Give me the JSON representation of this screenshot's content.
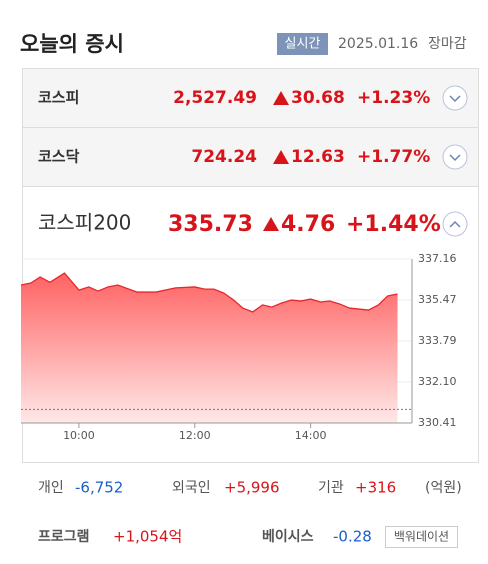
{
  "header": {
    "title": "오늘의 증시",
    "badge": "실시간",
    "date": "2025.01.16",
    "status": "장마감"
  },
  "indices": [
    {
      "name": "코스피",
      "price": "2,527.49",
      "change": "30.68",
      "rate": "+1.23%"
    },
    {
      "name": "코스닥",
      "price": "724.24",
      "change": "12.63",
      "rate": "+1.77%"
    },
    {
      "name": "코스피200",
      "price": "335.73",
      "change": "4.76",
      "rate": "+1.44%"
    }
  ],
  "chart_data": {
    "type": "area",
    "color": "#e8262c",
    "x": [
      9,
      9.17,
      9.33,
      9.5,
      9.75,
      10,
      10.17,
      10.33,
      10.5,
      10.67,
      11,
      11.33,
      11.67,
      12,
      12.17,
      12.33,
      12.5,
      12.67,
      12.83,
      13,
      13.17,
      13.33,
      13.5,
      13.67,
      13.83,
      14,
      14.17,
      14.33,
      14.5,
      14.67,
      14.83,
      15,
      15.17,
      15.33,
      15.5
    ],
    "values": [
      336.09,
      336.17,
      336.42,
      336.2,
      336.58,
      335.88,
      336.01,
      335.84,
      336.01,
      336.09,
      335.8,
      335.8,
      335.97,
      336.01,
      335.92,
      335.92,
      335.76,
      335.47,
      335.14,
      334.98,
      335.27,
      335.18,
      335.35,
      335.47,
      335.43,
      335.51,
      335.39,
      335.43,
      335.31,
      335.14,
      335.1,
      335.06,
      335.27,
      335.64,
      335.72
    ],
    "xlim": [
      9,
      15.75
    ],
    "xticks": [
      {
        "value": 10,
        "label": "10:00"
      },
      {
        "value": 12,
        "label": "12:00"
      },
      {
        "value": 14,
        "label": "14:00"
      }
    ],
    "ylim": [
      330.41,
      337.16
    ],
    "yticks": [
      337.16,
      335.47,
      333.79,
      {
        "value": 332.1,
        "label": "332.10"
      },
      330.41
    ],
    "baseline": 330.97,
    "grid": true
  },
  "investors": {
    "items": [
      {
        "name": "개인",
        "value": "-6,752"
      },
      {
        "name": "외국인",
        "value": "+5,996"
      },
      {
        "name": "기관",
        "value": "+316"
      }
    ],
    "unit": "(억원)"
  },
  "program": {
    "label": "프로그램",
    "value": "+1,054억"
  },
  "basis": {
    "label": "베이시스",
    "value": "-0.28",
    "state": "백워데이션"
  }
}
